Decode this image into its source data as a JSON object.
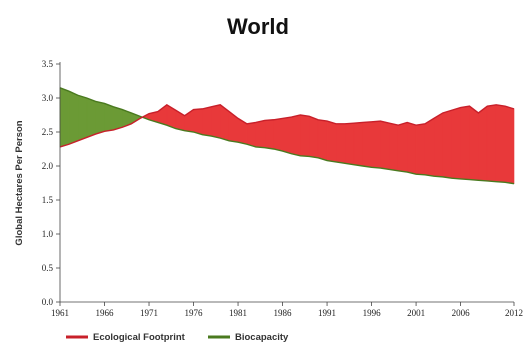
{
  "chart_data": {
    "type": "area",
    "title": "World",
    "xlabel": "",
    "ylabel": "Global Hectares Per Person",
    "xlim": [
      1961,
      2012
    ],
    "ylim": [
      0,
      3.5
    ],
    "x_ticks": [
      "1961",
      "1966",
      "1971",
      "1976",
      "1981",
      "1986",
      "1991",
      "1996",
      "2001",
      "2006",
      "2012"
    ],
    "y_ticks": [
      "0.0",
      "0.5",
      "1.0",
      "1.5",
      "2.0",
      "2.5",
      "3.0",
      "3.5"
    ],
    "grid": false,
    "legend_position": "bottom",
    "series": [
      {
        "name": "Ecological Footprint",
        "color": "#e8393a",
        "line_color": "#c8202a",
        "x": [
          1961,
          1962,
          1963,
          1964,
          1965,
          1966,
          1967,
          1968,
          1969,
          1970,
          1971,
          1972,
          1973,
          1974,
          1975,
          1976,
          1977,
          1978,
          1979,
          1980,
          1981,
          1982,
          1983,
          1984,
          1985,
          1986,
          1987,
          1988,
          1989,
          1990,
          1991,
          1992,
          1993,
          1994,
          1995,
          1996,
          1997,
          1998,
          1999,
          2000,
          2001,
          2002,
          2003,
          2004,
          2005,
          2006,
          2007,
          2008,
          2009,
          2010,
          2011,
          2012
        ],
        "y": [
          2.28,
          2.32,
          2.37,
          2.42,
          2.47,
          2.51,
          2.53,
          2.57,
          2.62,
          2.7,
          2.77,
          2.8,
          2.9,
          2.82,
          2.74,
          2.83,
          2.84,
          2.87,
          2.9,
          2.8,
          2.7,
          2.62,
          2.64,
          2.67,
          2.68,
          2.7,
          2.72,
          2.75,
          2.73,
          2.68,
          2.66,
          2.62,
          2.62,
          2.63,
          2.64,
          2.65,
          2.66,
          2.63,
          2.6,
          2.64,
          2.6,
          2.62,
          2.7,
          2.78,
          2.82,
          2.86,
          2.88,
          2.78,
          2.88,
          2.9,
          2.88,
          2.84
        ]
      },
      {
        "name": "Biocapacity",
        "color": "#6b9a35",
        "line_color": "#4a7a1f",
        "x": [
          1961,
          1962,
          1963,
          1964,
          1965,
          1966,
          1967,
          1968,
          1969,
          1970,
          1971,
          1972,
          1973,
          1974,
          1975,
          1976,
          1977,
          1978,
          1979,
          1980,
          1981,
          1982,
          1983,
          1984,
          1985,
          1986,
          1987,
          1988,
          1989,
          1990,
          1991,
          1992,
          1993,
          1994,
          1995,
          1996,
          1997,
          1998,
          1999,
          2000,
          2001,
          2002,
          2003,
          2004,
          2005,
          2006,
          2007,
          2008,
          2009,
          2010,
          2011,
          2012
        ],
        "y": [
          3.15,
          3.1,
          3.04,
          3.0,
          2.95,
          2.92,
          2.87,
          2.83,
          2.78,
          2.73,
          2.68,
          2.64,
          2.6,
          2.55,
          2.52,
          2.5,
          2.46,
          2.44,
          2.41,
          2.37,
          2.35,
          2.32,
          2.28,
          2.27,
          2.25,
          2.22,
          2.18,
          2.15,
          2.14,
          2.12,
          2.08,
          2.06,
          2.04,
          2.02,
          2.0,
          1.98,
          1.97,
          1.95,
          1.93,
          1.91,
          1.88,
          1.87,
          1.85,
          1.84,
          1.82,
          1.81,
          1.8,
          1.79,
          1.78,
          1.77,
          1.76,
          1.74
        ]
      }
    ]
  }
}
